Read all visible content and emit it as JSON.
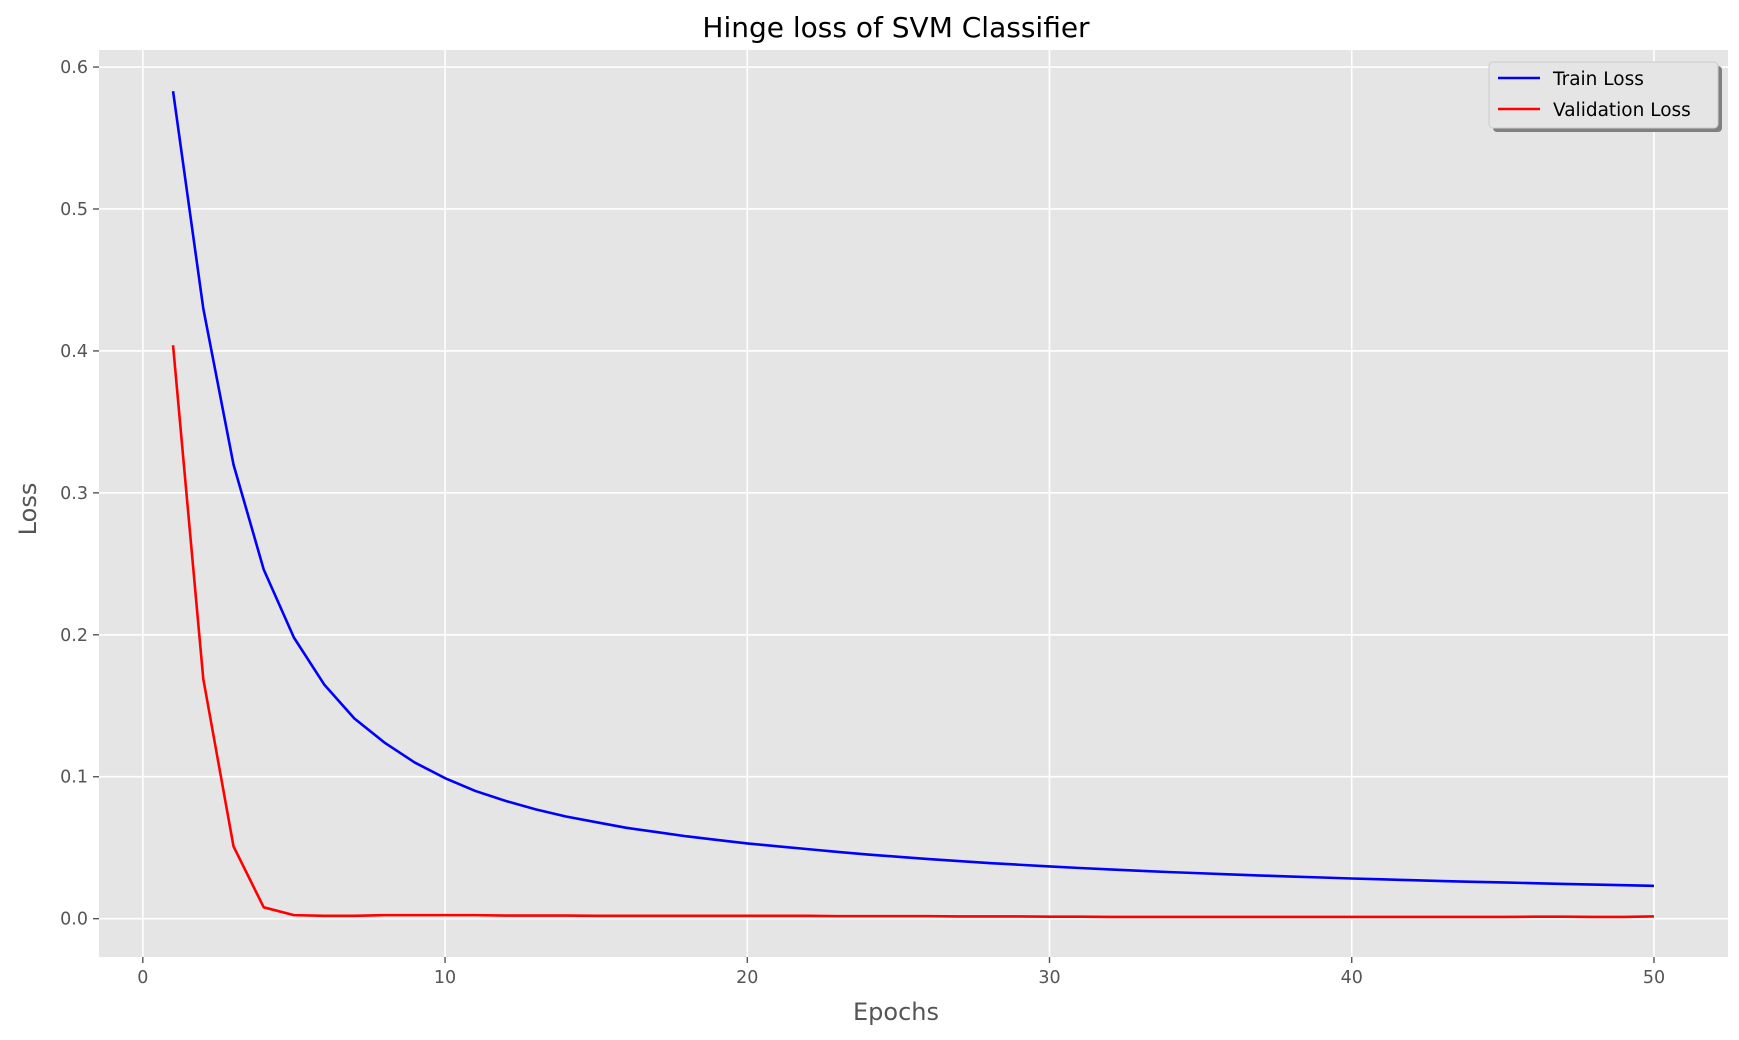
{
  "chart_data": {
    "type": "line",
    "title": "Hinge loss of SVM Classifier",
    "xlabel": "Epochs",
    "ylabel": "Loss",
    "xlim": [
      -1.45,
      52.45
    ],
    "ylim": [
      -0.027,
      0.612
    ],
    "xticks": [
      0,
      10,
      20,
      30,
      40,
      50
    ],
    "xtick_labels": [
      "0",
      "10",
      "20",
      "30",
      "40",
      "50"
    ],
    "yticks": [
      0.0,
      0.1,
      0.2,
      0.3,
      0.4,
      0.5,
      0.6
    ],
    "ytick_labels": [
      "0.0",
      "0.1",
      "0.2",
      "0.3",
      "0.4",
      "0.5",
      "0.6"
    ],
    "grid": true,
    "legend_position": "top-right",
    "background": "#E5E5E5",
    "grid_color": "#FFFFFF",
    "x": [
      1,
      2,
      3,
      4,
      5,
      6,
      7,
      8,
      9,
      10,
      11,
      12,
      13,
      14,
      15,
      16,
      17,
      18,
      19,
      20,
      21,
      22,
      23,
      24,
      25,
      26,
      27,
      28,
      29,
      30,
      31,
      32,
      33,
      34,
      35,
      36,
      37,
      38,
      39,
      40,
      41,
      42,
      43,
      44,
      45,
      46,
      47,
      48,
      49,
      50
    ],
    "series": [
      {
        "name": "Train Loss",
        "color": "#0000FF",
        "values": [
          0.583,
          0.43,
          0.32,
          0.246,
          0.198,
          0.165,
          0.141,
          0.124,
          0.11,
          0.099,
          0.09,
          0.083,
          0.077,
          0.072,
          0.068,
          0.064,
          0.061,
          0.058,
          0.0555,
          0.053,
          0.051,
          0.049,
          0.047,
          0.0452,
          0.0436,
          0.042,
          0.0406,
          0.0392,
          0.038,
          0.0368,
          0.0357,
          0.0347,
          0.0337,
          0.0328,
          0.032,
          0.0312,
          0.0304,
          0.0297,
          0.029,
          0.0283,
          0.0277,
          0.0271,
          0.0265,
          0.026,
          0.0255,
          0.025,
          0.0245,
          0.024,
          0.0236,
          0.0231
        ]
      },
      {
        "name": "Validation Loss",
        "color": "#FF0000",
        "values": [
          0.404,
          0.169,
          0.051,
          0.008,
          0.0025,
          0.002,
          0.002,
          0.0025,
          0.0025,
          0.0025,
          0.0025,
          0.0022,
          0.0022,
          0.0022,
          0.002,
          0.002,
          0.002,
          0.002,
          0.002,
          0.002,
          0.002,
          0.002,
          0.0018,
          0.0018,
          0.0018,
          0.0018,
          0.0016,
          0.0016,
          0.0016,
          0.0014,
          0.0014,
          0.0012,
          0.0012,
          0.0012,
          0.0012,
          0.0012,
          0.0012,
          0.0012,
          0.0012,
          0.0012,
          0.0012,
          0.0012,
          0.0012,
          0.0012,
          0.0012,
          0.0014,
          0.0014,
          0.0012,
          0.0012,
          0.0016
        ]
      }
    ]
  }
}
